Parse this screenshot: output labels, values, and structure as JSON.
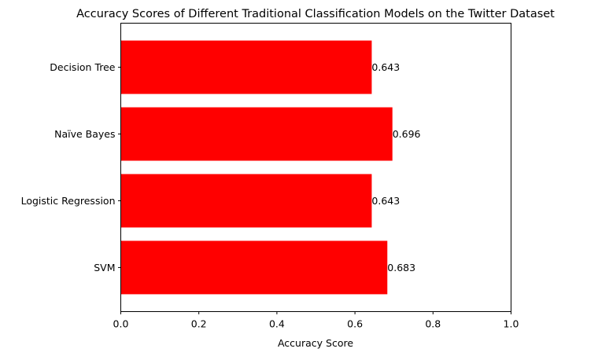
{
  "chart_data": {
    "type": "bar",
    "orientation": "horizontal",
    "title": "Accuracy Scores of Different Traditional Classification Models on the Twitter Dataset",
    "xlabel": "Accuracy Score",
    "ylabel": "",
    "categories": [
      "SVM",
      "Logistic Regression",
      "Naïve Bayes",
      "Decision Tree"
    ],
    "values": [
      0.683,
      0.643,
      0.696,
      0.643
    ],
    "data_labels": [
      "0.683",
      "0.643",
      "0.696",
      "0.643"
    ],
    "xlim": [
      0,
      1
    ],
    "xticks": [
      0.0,
      0.2,
      0.4,
      0.6,
      0.8,
      1.0
    ],
    "xtick_labels": [
      "0.0",
      "0.2",
      "0.4",
      "0.6",
      "0.8",
      "1.0"
    ],
    "grid": false,
    "legend": "none",
    "bar_color": "#ff0000"
  }
}
